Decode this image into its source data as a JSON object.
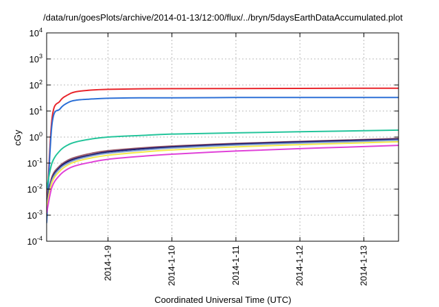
{
  "chart_data": {
    "type": "line",
    "title": "/data/run/goesPlots/archive/2014-01-13/12:00/flux/../bryn/5daysEarthDataAccumulated.plot",
    "xlabel": "Coordinated Universal Time (UTC)",
    "ylabel": "cGy",
    "y_scale": "log",
    "ylim": [
      0.0001,
      10000
    ],
    "y_ticks": [
      {
        "base": "10",
        "exp": "-4",
        "value": 0.0001
      },
      {
        "base": "10",
        "exp": "-3",
        "value": 0.001
      },
      {
        "base": "10",
        "exp": "-2",
        "value": 0.01
      },
      {
        "base": "10",
        "exp": "-1",
        "value": 0.1
      },
      {
        "base": "10",
        "exp": "0",
        "value": 1
      },
      {
        "base": "10",
        "exp": "1",
        "value": 10
      },
      {
        "base": "10",
        "exp": "2",
        "value": 100
      },
      {
        "base": "10",
        "exp": "3",
        "value": 1000
      },
      {
        "base": "10",
        "exp": "4",
        "value": 10000
      }
    ],
    "x_start_date": "2014-01-08T01:00",
    "x_end_date": "2014-01-13T13:00",
    "x_ticks": [
      {
        "label": "2014-1-9",
        "date": "2014-01-09"
      },
      {
        "label": "2014-1-10",
        "date": "2014-01-10"
      },
      {
        "label": "2014-1-11",
        "date": "2014-01-11"
      },
      {
        "label": "2014-1-12",
        "date": "2014-01-12"
      },
      {
        "label": "2014-1-13",
        "date": "2014-01-13"
      }
    ],
    "grid": true,
    "series": [
      {
        "color": "#e8242a",
        "x": [
          "2014-01-08T01:00",
          "2014-01-08T03:00",
          "2014-01-08T06:00",
          "2014-01-08T09:00",
          "2014-01-08T12:00",
          "2014-01-08T18:00",
          "2014-01-09T00:00",
          "2014-01-09T12:00",
          "2014-01-10T00:00",
          "2014-01-11T00:00",
          "2014-01-12T00:00",
          "2014-01-13T00:00",
          "2014-01-13T13:00"
        ],
        "y": [
          0.001,
          5,
          24,
          42,
          55,
          64,
          68,
          71,
          72,
          73,
          74,
          75,
          75
        ]
      },
      {
        "color": "#2b6fd6",
        "x": [
          "2014-01-08T01:00",
          "2014-01-08T03:00",
          "2014-01-08T06:00",
          "2014-01-08T09:00",
          "2014-01-08T12:00",
          "2014-01-08T18:00",
          "2014-01-09T00:00",
          "2014-01-09T12:00",
          "2014-01-10T00:00",
          "2014-01-11T00:00",
          "2014-01-12T00:00",
          "2014-01-13T00:00",
          "2014-01-13T13:00"
        ],
        "y": [
          0.0005,
          3,
          12,
          21,
          26,
          29,
          31,
          32,
          32,
          33,
          33,
          33,
          33
        ]
      },
      {
        "color": "#22c49a",
        "x": [
          "2014-01-08T01:00",
          "2014-01-08T03:00",
          "2014-01-08T06:00",
          "2014-01-08T09:00",
          "2014-01-08T12:00",
          "2014-01-08T18:00",
          "2014-01-09T00:00",
          "2014-01-09T12:00",
          "2014-01-10T00:00",
          "2014-01-11T00:00",
          "2014-01-12T00:00",
          "2014-01-13T00:00",
          "2014-01-13T13:00"
        ],
        "y": [
          0.01,
          0.1,
          0.3,
          0.5,
          0.65,
          0.85,
          1.0,
          1.15,
          1.3,
          1.45,
          1.6,
          1.75,
          1.85
        ]
      },
      {
        "color": "#9a5a6a",
        "x": [
          "2014-01-08T01:00",
          "2014-01-08T03:00",
          "2014-01-08T06:00",
          "2014-01-08T09:00",
          "2014-01-08T12:00",
          "2014-01-08T18:00",
          "2014-01-09T00:00",
          "2014-01-09T12:00",
          "2014-01-10T00:00",
          "2014-01-11T00:00",
          "2014-01-12T00:00",
          "2014-01-13T00:00",
          "2014-01-13T13:00"
        ],
        "y": [
          0.003,
          0.03,
          0.08,
          0.13,
          0.17,
          0.24,
          0.3,
          0.38,
          0.45,
          0.57,
          0.68,
          0.8,
          0.88
        ]
      },
      {
        "color": "#1a1a6e",
        "x": [
          "2014-01-08T01:00",
          "2014-01-08T03:00",
          "2014-01-08T06:00",
          "2014-01-08T09:00",
          "2014-01-08T12:00",
          "2014-01-08T18:00",
          "2014-01-09T00:00",
          "2014-01-09T12:00",
          "2014-01-10T00:00",
          "2014-01-11T00:00",
          "2014-01-12T00:00",
          "2014-01-13T00:00",
          "2014-01-13T13:00"
        ],
        "y": [
          0.0025,
          0.025,
          0.07,
          0.115,
          0.15,
          0.21,
          0.27,
          0.35,
          0.42,
          0.54,
          0.65,
          0.76,
          0.83
        ]
      },
      {
        "color": "#7a9ad0",
        "x": [
          "2014-01-08T01:00",
          "2014-01-08T03:00",
          "2014-01-08T06:00",
          "2014-01-08T09:00",
          "2014-01-08T12:00",
          "2014-01-08T18:00",
          "2014-01-09T00:00",
          "2014-01-09T12:00",
          "2014-01-10T00:00",
          "2014-01-11T00:00",
          "2014-01-12T00:00",
          "2014-01-13T00:00",
          "2014-01-13T13:00"
        ],
        "y": [
          0.0022,
          0.022,
          0.062,
          0.1,
          0.135,
          0.19,
          0.24,
          0.31,
          0.38,
          0.49,
          0.59,
          0.69,
          0.76
        ]
      },
      {
        "color": "#f3e84a",
        "x": [
          "2014-01-08T01:00",
          "2014-01-08T03:00",
          "2014-01-08T06:00",
          "2014-01-08T09:00",
          "2014-01-08T12:00",
          "2014-01-08T18:00",
          "2014-01-09T00:00",
          "2014-01-09T12:00",
          "2014-01-10T00:00",
          "2014-01-11T00:00",
          "2014-01-12T00:00",
          "2014-01-13T00:00",
          "2014-01-13T13:00"
        ],
        "y": [
          0.0018,
          0.018,
          0.05,
          0.085,
          0.115,
          0.16,
          0.2,
          0.26,
          0.32,
          0.42,
          0.51,
          0.6,
          0.66
        ]
      },
      {
        "color": "#e040d8",
        "x": [
          "2014-01-08T01:00",
          "2014-01-08T03:00",
          "2014-01-08T06:00",
          "2014-01-08T09:00",
          "2014-01-08T12:00",
          "2014-01-08T18:00",
          "2014-01-09T00:00",
          "2014-01-09T12:00",
          "2014-01-10T00:00",
          "2014-01-11T00:00",
          "2014-01-12T00:00",
          "2014-01-13T00:00",
          "2014-01-13T13:00"
        ],
        "y": [
          0.0012,
          0.012,
          0.035,
          0.06,
          0.08,
          0.11,
          0.14,
          0.18,
          0.22,
          0.29,
          0.36,
          0.43,
          0.48
        ]
      }
    ]
  }
}
